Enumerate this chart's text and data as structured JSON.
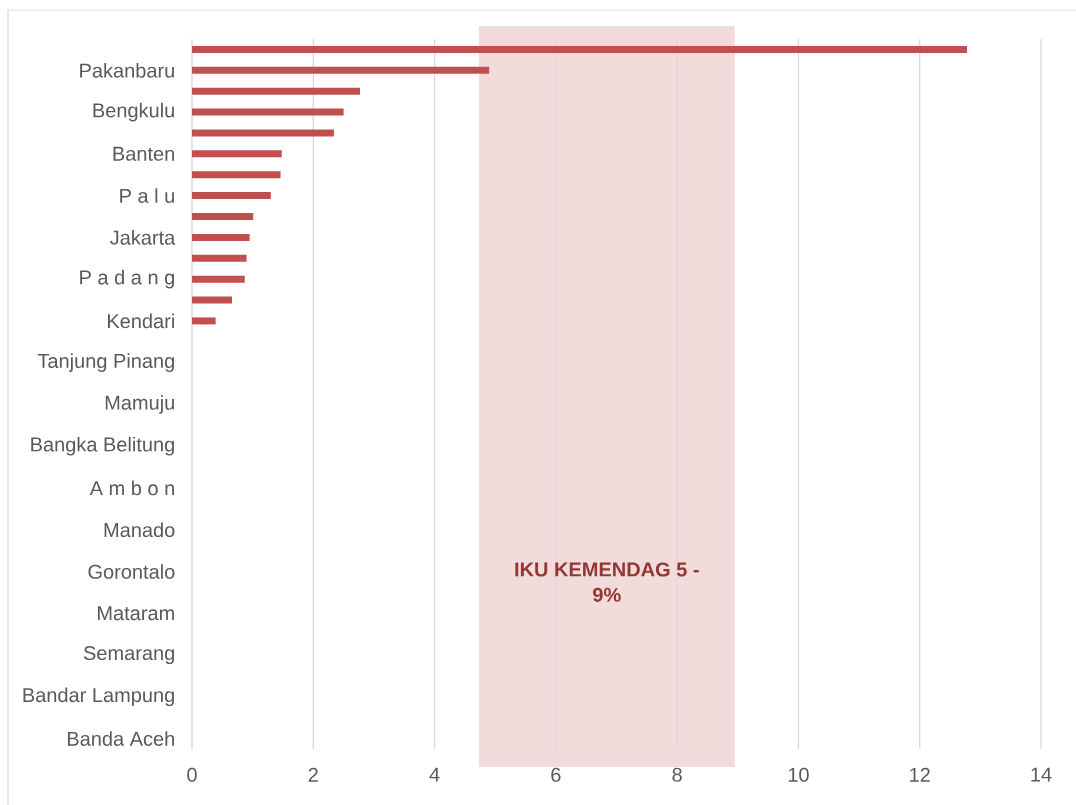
{
  "chart_data": {
    "type": "bar",
    "orientation": "horizontal",
    "categories": [
      null,
      "Pakanbaru",
      null,
      "Bengkulu",
      null,
      "Banten",
      null,
      "P a l u",
      null,
      "Jakarta",
      null,
      "P a d a n g",
      null,
      "Kendari",
      null,
      "Tanjung Pinang",
      null,
      "Mamuju",
      null,
      "Bangka  Belitung",
      null,
      "A m b o n",
      null,
      "Manado",
      null,
      "Gorontalo",
      null,
      "Mataram",
      null,
      "Semarang",
      null,
      "Bandar Lampung",
      null,
      "Banda Aceh"
    ],
    "values": [
      12.78,
      4.9,
      2.77,
      2.5,
      2.34,
      1.48,
      1.46,
      1.3,
      1.01,
      0.95,
      0.9,
      0.87,
      0.66,
      0.39,
      null,
      null,
      null,
      null,
      null,
      null,
      null,
      null,
      null,
      null,
      null,
      null,
      null,
      null,
      null,
      null,
      null,
      null,
      null,
      null
    ],
    "color": "#c0504d",
    "xlim": [
      0,
      14
    ],
    "xticks": [
      0,
      2,
      4,
      6,
      8,
      10,
      12,
      14
    ],
    "grid": "x",
    "bands": [
      {
        "axis": "x",
        "from": 4.73,
        "to": 8.95,
        "label": "IKU KEMENDAG 5 - 9%",
        "color": "#f2dcdb"
      }
    ]
  }
}
